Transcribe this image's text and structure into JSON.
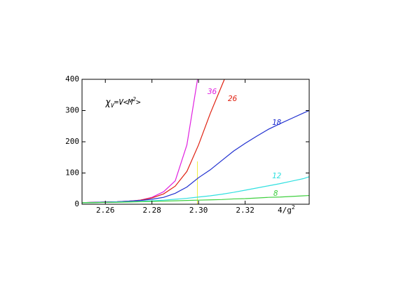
{
  "chart_data": {
    "type": "line",
    "annotation": [
      "χ",
      "V",
      "=V<M",
      "2",
      ">"
    ],
    "xlabel": [
      "4/g",
      "2"
    ],
    "x": [
      2.25,
      2.255,
      2.26,
      2.265,
      2.27,
      2.275,
      2.28,
      2.285,
      2.29,
      2.295,
      2.3,
      2.305,
      2.31,
      2.315,
      2.32,
      2.325,
      2.33,
      2.335,
      2.34,
      2.345,
      2.3475
    ],
    "series": [
      {
        "name": "36",
        "color": "#e020e0",
        "values": [
          5,
          6,
          7,
          8,
          10,
          13,
          22,
          40,
          75,
          190,
          420,
          null,
          null,
          null,
          null,
          null,
          null,
          null,
          null,
          null,
          null
        ]
      },
      {
        "name": "26",
        "color": "#e02010",
        "values": [
          5,
          6,
          7,
          8,
          10,
          13,
          20,
          33,
          58,
          105,
          190,
          290,
          380,
          470,
          null,
          null,
          null,
          null,
          null,
          null,
          null
        ]
      },
      {
        "name": "18",
        "color": "#2030d0",
        "values": [
          5,
          6,
          7,
          8,
          10,
          12,
          16,
          22,
          35,
          55,
          85,
          110,
          140,
          170,
          195,
          218,
          240,
          258,
          275,
          292,
          300
        ]
      },
      {
        "name": "12",
        "color": "#30e0e0",
        "values": [
          5,
          5,
          6,
          7,
          8,
          9,
          11,
          13,
          16,
          19,
          23,
          27,
          32,
          38,
          45,
          52,
          59,
          66,
          74,
          82,
          88
        ]
      },
      {
        "name": "8",
        "color": "#40d040",
        "values": [
          5,
          5,
          6,
          6,
          7,
          8,
          9,
          10,
          11,
          12,
          13,
          14,
          15,
          17,
          18,
          20,
          22,
          23,
          25,
          27,
          28
        ]
      }
    ],
    "marker_x": 2.2995,
    "marker_color": "#f0f040",
    "xlim": [
      2.25,
      2.3475
    ],
    "xticks": [
      2.26,
      2.28,
      {
        "value": 2.3,
        "label": "2.30"
      },
      2.32
    ],
    "ylim": [
      0,
      400
    ],
    "yticks": [
      0,
      100,
      200,
      300,
      400
    ]
  }
}
